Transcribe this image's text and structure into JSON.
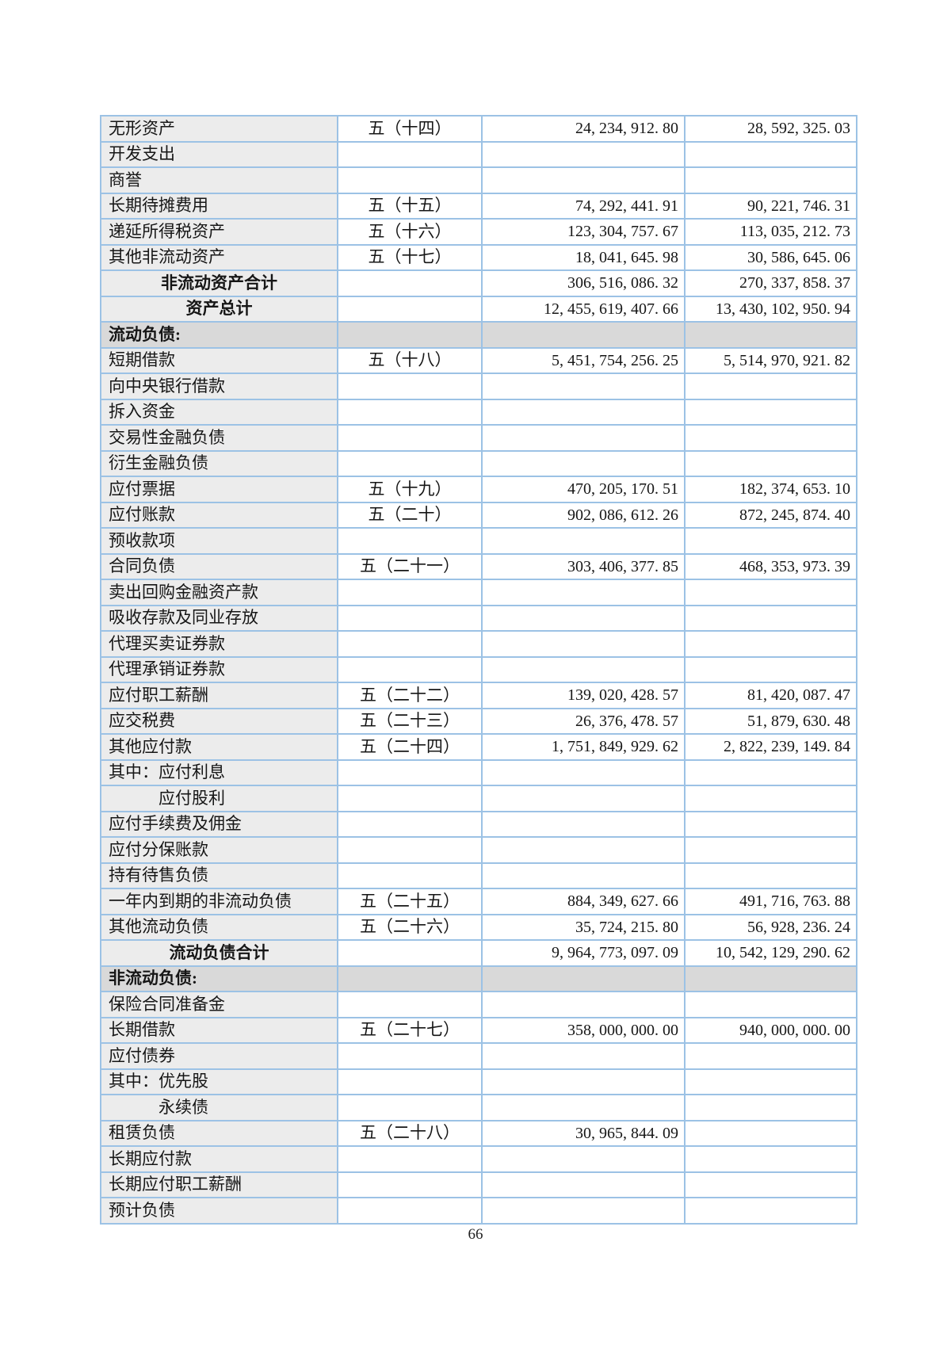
{
  "page": {
    "number": "66"
  },
  "colors": {
    "table_border": "#9cc2e5",
    "label_cell_bg": "#ececec",
    "section_row_bg": "#d9d9d9",
    "value_cell_bg": "#ffffff",
    "text": "#161616"
  },
  "table": {
    "rows": [
      {
        "style": "data",
        "label": "无形资产",
        "note": "五（十四）",
        "current": "24, 234, 912. 80",
        "prior": "28, 592, 325. 03"
      },
      {
        "style": "data",
        "label": "开发支出",
        "note": "",
        "current": "",
        "prior": ""
      },
      {
        "style": "data",
        "label": "商誉",
        "note": "",
        "current": "",
        "prior": ""
      },
      {
        "style": "data",
        "label": "长期待摊费用",
        "note": "五（十五）",
        "current": "74, 292, 441. 91",
        "prior": "90, 221, 746. 31"
      },
      {
        "style": "data",
        "label": "递延所得税资产",
        "note": "五（十六）",
        "current": "123, 304, 757. 67",
        "prior": "113, 035, 212. 73"
      },
      {
        "style": "data",
        "label": "其他非流动资产",
        "note": "五（十七）",
        "current": "18, 041, 645. 98",
        "prior": "30, 586, 645. 06"
      },
      {
        "style": "subtotal",
        "label": "非流动资产合计",
        "note": "",
        "current": "306, 516, 086. 32",
        "prior": "270, 337, 858. 37"
      },
      {
        "style": "subtotal",
        "label": "资产总计",
        "note": "",
        "current": "12, 455, 619, 407. 66",
        "prior": "13, 430, 102, 950. 94"
      },
      {
        "style": "section",
        "label": "流动负债:",
        "note": "",
        "current": "",
        "prior": ""
      },
      {
        "style": "data",
        "label": "短期借款",
        "note": "五（十八）",
        "current": "5, 451, 754, 256. 25",
        "prior": "5, 514, 970, 921. 82"
      },
      {
        "style": "data",
        "label": "向中央银行借款",
        "note": "",
        "current": "",
        "prior": ""
      },
      {
        "style": "data",
        "label": "拆入资金",
        "note": "",
        "current": "",
        "prior": ""
      },
      {
        "style": "data",
        "label": "交易性金融负债",
        "note": "",
        "current": "",
        "prior": ""
      },
      {
        "style": "data",
        "label": "衍生金融负债",
        "note": "",
        "current": "",
        "prior": ""
      },
      {
        "style": "data",
        "label": "应付票据",
        "note": "五（十九）",
        "current": "470, 205, 170. 51",
        "prior": "182, 374, 653. 10"
      },
      {
        "style": "data",
        "label": "应付账款",
        "note": "五（二十）",
        "current": "902, 086, 612. 26",
        "prior": "872, 245, 874. 40"
      },
      {
        "style": "data",
        "label": "预收款项",
        "note": "",
        "current": "",
        "prior": ""
      },
      {
        "style": "data",
        "label": "合同负债",
        "note": "五（二十一）",
        "current": "303, 406, 377. 85",
        "prior": "468, 353, 973. 39"
      },
      {
        "style": "data",
        "label": "卖出回购金融资产款",
        "note": "",
        "current": "",
        "prior": ""
      },
      {
        "style": "data",
        "label": "吸收存款及同业存放",
        "note": "",
        "current": "",
        "prior": ""
      },
      {
        "style": "data",
        "label": "代理买卖证券款",
        "note": "",
        "current": "",
        "prior": ""
      },
      {
        "style": "data",
        "label": "代理承销证券款",
        "note": "",
        "current": "",
        "prior": ""
      },
      {
        "style": "data",
        "label": "应付职工薪酬",
        "note": "五（二十二）",
        "current": "139, 020, 428. 57",
        "prior": "81, 420, 087. 47"
      },
      {
        "style": "data",
        "label": "应交税费",
        "note": "五（二十三）",
        "current": "26, 376, 478. 57",
        "prior": "51, 879, 630. 48"
      },
      {
        "style": "data",
        "label": "其他应付款",
        "note": "五（二十四）",
        "current": "1, 751, 849, 929. 62",
        "prior": "2, 822, 239, 149. 84"
      },
      {
        "style": "data",
        "label": "其中：应付利息",
        "note": "",
        "current": "",
        "prior": ""
      },
      {
        "style": "data",
        "label": "应付股利",
        "indent": true,
        "note": "",
        "current": "",
        "prior": ""
      },
      {
        "style": "data",
        "label": "应付手续费及佣金",
        "note": "",
        "current": "",
        "prior": ""
      },
      {
        "style": "data",
        "label": "应付分保账款",
        "note": "",
        "current": "",
        "prior": ""
      },
      {
        "style": "data",
        "label": "持有待售负债",
        "note": "",
        "current": "",
        "prior": ""
      },
      {
        "style": "data",
        "label": "一年内到期的非流动负债",
        "note": "五（二十五）",
        "current": "884, 349, 627. 66",
        "prior": "491, 716, 763. 88"
      },
      {
        "style": "data",
        "label": "其他流动负债",
        "note": "五（二十六）",
        "current": "35, 724, 215. 80",
        "prior": "56, 928, 236. 24"
      },
      {
        "style": "subtotal",
        "label": "流动负债合计",
        "note": "",
        "current": "9, 964, 773, 097. 09",
        "prior": "10, 542, 129, 290. 62"
      },
      {
        "style": "section",
        "label": "非流动负债:",
        "note": "",
        "current": "",
        "prior": ""
      },
      {
        "style": "data",
        "label": "保险合同准备金",
        "note": "",
        "current": "",
        "prior": ""
      },
      {
        "style": "data",
        "label": "长期借款",
        "note": "五（二十七）",
        "current": "358, 000, 000. 00",
        "prior": "940, 000, 000. 00"
      },
      {
        "style": "data",
        "label": "应付债券",
        "note": "",
        "current": "",
        "prior": ""
      },
      {
        "style": "data",
        "label": "其中：优先股",
        "note": "",
        "current": "",
        "prior": ""
      },
      {
        "style": "data",
        "label": "永续债",
        "indent": true,
        "note": "",
        "current": "",
        "prior": ""
      },
      {
        "style": "data",
        "label": "租赁负债",
        "note": "五（二十八）",
        "current": "30, 965, 844. 09",
        "prior": ""
      },
      {
        "style": "data",
        "label": "长期应付款",
        "note": "",
        "current": "",
        "prior": ""
      },
      {
        "style": "data",
        "label": "长期应付职工薪酬",
        "note": "",
        "current": "",
        "prior": ""
      },
      {
        "style": "data",
        "label": "预计负债",
        "note": "",
        "current": "",
        "prior": ""
      }
    ]
  }
}
